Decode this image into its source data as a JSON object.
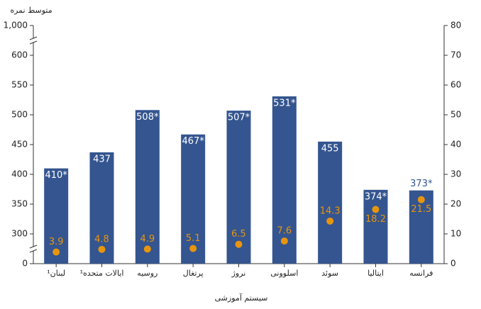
{
  "chart_data": {
    "type": "bar",
    "title": "متوسط نمره",
    "x_label": "سیستم آموزشی",
    "categories": [
      "لبنان¹",
      "ایالات متحده¹",
      "روسیه",
      "پرتغال",
      "نروژ",
      "اسلوونی",
      "سوئد",
      "ایتالیا",
      "فرانسه"
    ],
    "series": [
      {
        "type": "bar",
        "color": "#34558f",
        "values": [
          410,
          437,
          508,
          467,
          507,
          531,
          455,
          374,
          373
        ],
        "value_labels": [
          "410*",
          "437",
          "508*",
          "467*",
          "507*",
          "531*",
          "455",
          "374*",
          "373*"
        ]
      },
      {
        "type": "scatter",
        "axis": "y2",
        "color": "#e8950e",
        "values": [
          3.9,
          4.8,
          4.9,
          5.1,
          6.5,
          7.6,
          14.3,
          18.2,
          21.5
        ]
      }
    ],
    "ylim": [
      0,
      1000
    ],
    "yticks": [
      0,
      300,
      350,
      400,
      450,
      500,
      550,
      600,
      {
        "value": 1000,
        "label": "1,000"
      }
    ],
    "y_axis_break": true,
    "y2lim": [
      0,
      80
    ],
    "y2ticks": [
      0,
      10,
      20,
      30,
      40,
      50,
      60,
      70,
      80
    ]
  }
}
